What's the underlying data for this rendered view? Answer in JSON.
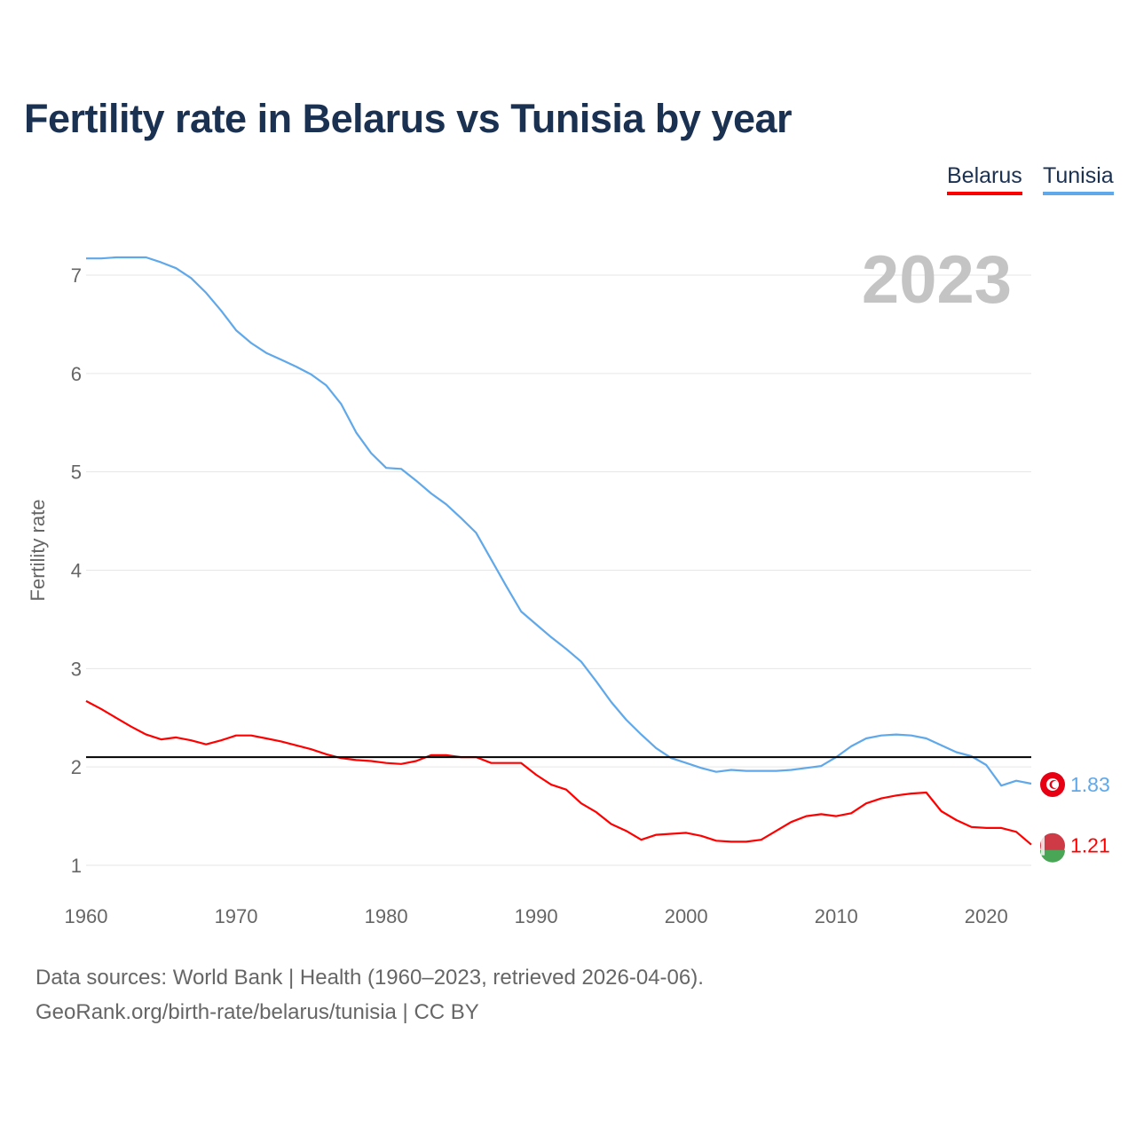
{
  "chart_data": {
    "type": "line",
    "title": "Fertility rate in Belarus vs Tunisia by year",
    "xlabel": "",
    "ylabel": "Fertility rate",
    "xlim": [
      1960,
      2023
    ],
    "ylim": [
      1,
      7
    ],
    "x_ticks": [
      "1960",
      "1970",
      "1980",
      "1990",
      "2000",
      "2010",
      "2020"
    ],
    "y_ticks": [
      "1",
      "2",
      "3",
      "4",
      "5",
      "6",
      "7"
    ],
    "grid": true,
    "legend_position": "top-right",
    "year_label": "2023",
    "reference_line": 2.1,
    "x": [
      1960,
      1961,
      1962,
      1963,
      1964,
      1965,
      1966,
      1967,
      1968,
      1969,
      1970,
      1971,
      1972,
      1973,
      1974,
      1975,
      1976,
      1977,
      1978,
      1979,
      1980,
      1981,
      1982,
      1983,
      1984,
      1985,
      1986,
      1987,
      1988,
      1989,
      1990,
      1991,
      1992,
      1993,
      1994,
      1995,
      1996,
      1997,
      1998,
      1999,
      2000,
      2001,
      2002,
      2003,
      2004,
      2005,
      2006,
      2007,
      2008,
      2009,
      2010,
      2011,
      2012,
      2013,
      2014,
      2015,
      2016,
      2017,
      2018,
      2019,
      2020,
      2021,
      2022,
      2023
    ],
    "series": [
      {
        "name": "Belarus",
        "color": "#ff0000",
        "end_label": "1.21",
        "values": [
          2.67,
          2.59,
          2.5,
          2.41,
          2.33,
          2.28,
          2.3,
          2.27,
          2.23,
          2.27,
          2.32,
          2.32,
          2.29,
          2.26,
          2.22,
          2.18,
          2.13,
          2.09,
          2.07,
          2.06,
          2.04,
          2.03,
          2.06,
          2.12,
          2.12,
          2.1,
          2.1,
          2.04,
          2.04,
          2.04,
          1.92,
          1.82,
          1.77,
          1.63,
          1.54,
          1.42,
          1.35,
          1.26,
          1.31,
          1.32,
          1.33,
          1.3,
          1.25,
          1.24,
          1.24,
          1.26,
          1.35,
          1.44,
          1.5,
          1.52,
          1.5,
          1.53,
          1.63,
          1.68,
          1.71,
          1.73,
          1.74,
          1.55,
          1.46,
          1.39,
          1.38,
          1.38,
          1.34,
          1.21
        ]
      },
      {
        "name": "Tunisia",
        "color": "#5fa8ea",
        "end_label": "1.83",
        "values": [
          7.17,
          7.17,
          7.18,
          7.18,
          7.18,
          7.13,
          7.07,
          6.97,
          6.82,
          6.64,
          6.44,
          6.31,
          6.21,
          6.14,
          6.07,
          5.99,
          5.88,
          5.69,
          5.4,
          5.19,
          5.04,
          5.03,
          4.91,
          4.78,
          4.67,
          4.53,
          4.38,
          4.11,
          3.84,
          3.58,
          3.45,
          3.32,
          3.2,
          3.07,
          2.87,
          2.66,
          2.48,
          2.33,
          2.19,
          2.09,
          2.04,
          1.99,
          1.95,
          1.97,
          1.96,
          1.96,
          1.96,
          1.97,
          1.99,
          2.01,
          2.1,
          2.21,
          2.29,
          2.32,
          2.33,
          2.32,
          2.29,
          2.22,
          2.15,
          2.11,
          2.02,
          1.81,
          1.86,
          1.83
        ]
      }
    ]
  },
  "footer": {
    "line1": "Data sources: World Bank | Health (1960–2023, retrieved 2026-04-06).",
    "line2": "GeoRank.org/birth-rate/belarus/tunisia | CC BY"
  }
}
